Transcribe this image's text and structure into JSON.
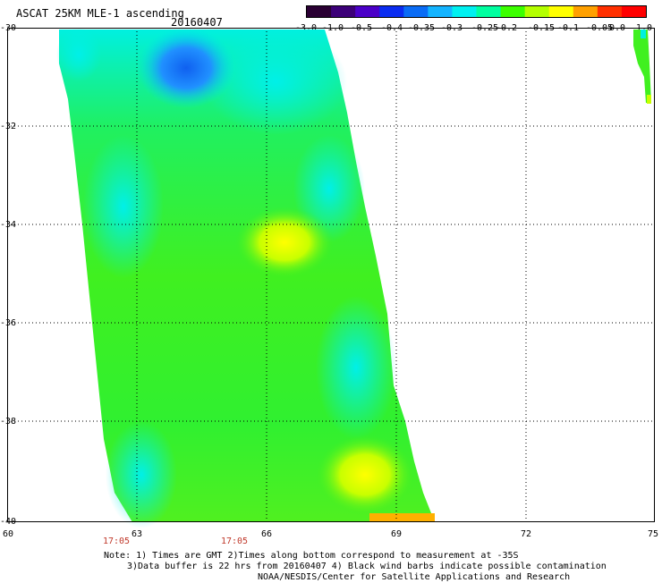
{
  "header": {
    "title": "ASCAT 25KM MLE-1 ascending",
    "date": "20160407"
  },
  "colorbar": {
    "ticks": [
      "-3.0",
      "-1.0",
      "-0.5",
      "-0.4",
      "-0.35",
      "-0.3",
      "-0.25",
      "-0.2",
      "-0.15",
      "-0.1",
      "-0.05",
      "0.0",
      "1.0"
    ],
    "colors": [
      "#2a0033",
      "#3c0078",
      "#4b00c8",
      "#0a2cf0",
      "#0a6cf5",
      "#14b4ff",
      "#00f0f0",
      "#00ffa0",
      "#3cff00",
      "#b4ff00",
      "#ffff00",
      "#ffa000",
      "#ff3000",
      "#ff0000"
    ]
  },
  "map": {
    "lat_ticks": [
      "-30",
      "-32",
      "-34",
      "-36",
      "-38",
      "-40"
    ],
    "lon_ticks": [
      "60",
      "63",
      "66",
      "69",
      "72",
      "75"
    ],
    "swath_times": [
      "17:05",
      "17:05"
    ]
  },
  "note": {
    "line1": "Note: 1) Times are GMT 2)Times along bottom correspond to measurement at -35S",
    "line2": "3)Data buffer is 22 hrs from 20160407 4) Black wind barbs indicate possible contamination",
    "line3": "NOAA/NESDIS/Center for Satellite Applications and Research"
  }
}
